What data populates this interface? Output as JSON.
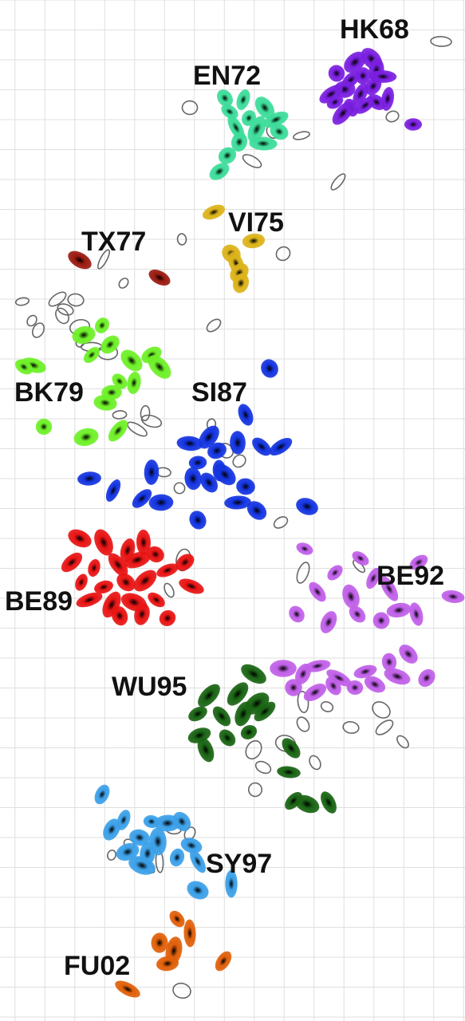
{
  "chart_data": {
    "type": "scatter",
    "grid": true,
    "title": "",
    "xlabel": "",
    "ylabel": "",
    "series": [
      {
        "name": "HK68",
        "color": "#7a1fe0",
        "points": [
          [
            445,
            78
          ],
          [
            466,
            74
          ],
          [
            422,
            92
          ],
          [
            440,
            100
          ],
          [
            455,
            95
          ],
          [
            472,
            88
          ],
          [
            432,
            112
          ],
          [
            452,
            118
          ],
          [
            468,
            108
          ],
          [
            480,
            96
          ],
          [
            420,
            128
          ],
          [
            440,
            135
          ],
          [
            458,
            132
          ],
          [
            472,
            128
          ],
          [
            486,
            124
          ],
          [
            430,
            142
          ],
          [
            415,
            118
          ],
          [
            518,
            156
          ]
        ]
      },
      {
        "name": "EN72",
        "color": "#3ddc9a",
        "points": [
          [
            282,
            123
          ],
          [
            305,
            125
          ],
          [
            288,
            140
          ],
          [
            312,
            148
          ],
          [
            332,
            135
          ],
          [
            346,
            150
          ],
          [
            296,
            160
          ],
          [
            322,
            162
          ],
          [
            300,
            178
          ],
          [
            330,
            180
          ],
          [
            285,
            195
          ],
          [
            275,
            215
          ],
          [
            350,
            165
          ]
        ]
      },
      {
        "name": "VI75",
        "color": "#dcb31a",
        "points": [
          [
            268,
            266
          ],
          [
            318,
            302
          ],
          [
            290,
            318
          ],
          [
            296,
            330
          ],
          [
            300,
            342
          ],
          [
            302,
            355
          ]
        ]
      },
      {
        "name": "TX77",
        "color": "#9a1a10",
        "points": [
          [
            100,
            326
          ],
          [
            200,
            348
          ]
        ]
      },
      {
        "name": "BK79",
        "color": "#6ef028",
        "points": [
          [
            128,
            408
          ],
          [
            105,
            420
          ],
          [
            138,
            432
          ],
          [
            115,
            445
          ],
          [
            165,
            452
          ],
          [
            190,
            445
          ],
          [
            200,
            460
          ],
          [
            42,
            458
          ],
          [
            30,
            460
          ],
          [
            150,
            478
          ],
          [
            168,
            480
          ],
          [
            140,
            492
          ],
          [
            132,
            505
          ],
          [
            148,
            540
          ],
          [
            108,
            548
          ],
          [
            55,
            535
          ]
        ]
      },
      {
        "name": "SI87",
        "color": "#1434e0",
        "points": [
          [
            338,
            462
          ],
          [
            308,
            520
          ],
          [
            238,
            556
          ],
          [
            262,
            548
          ],
          [
            272,
            565
          ],
          [
            248,
            580
          ],
          [
            275,
            590
          ],
          [
            298,
            555
          ],
          [
            328,
            560
          ],
          [
            352,
            560
          ],
          [
            190,
            592
          ],
          [
            242,
            600
          ],
          [
            262,
            605
          ],
          [
            282,
            595
          ],
          [
            308,
            610
          ],
          [
            298,
            630
          ],
          [
            322,
            640
          ],
          [
            112,
            600
          ],
          [
            142,
            615
          ],
          [
            178,
            625
          ],
          [
            202,
            630
          ],
          [
            248,
            652
          ],
          [
            385,
            635
          ]
        ]
      },
      {
        "name": "BE89",
        "color": "#e81414",
        "points": [
          [
            100,
            675
          ],
          [
            130,
            680
          ],
          [
            160,
            690
          ],
          [
            180,
            680
          ],
          [
            90,
            705
          ],
          [
            118,
            712
          ],
          [
            148,
            708
          ],
          [
            172,
            702
          ],
          [
            195,
            695
          ],
          [
            102,
            730
          ],
          [
            130,
            736
          ],
          [
            158,
            730
          ],
          [
            182,
            728
          ],
          [
            210,
            715
          ],
          [
            232,
            705
          ],
          [
            112,
            752
          ],
          [
            140,
            758
          ],
          [
            168,
            755
          ],
          [
            196,
            752
          ],
          [
            240,
            735
          ],
          [
            150,
            772
          ],
          [
            178,
            770
          ],
          [
            210,
            775
          ]
        ]
      },
      {
        "name": "BE92",
        "color": "#c060e8",
        "points": [
          [
            382,
            688
          ],
          [
            452,
            700
          ],
          [
            420,
            718
          ],
          [
            468,
            725
          ],
          [
            488,
            738
          ],
          [
            525,
            705
          ],
          [
            568,
            748
          ],
          [
            398,
            742
          ],
          [
            440,
            748
          ],
          [
            372,
            770
          ],
          [
            412,
            780
          ],
          [
            448,
            770
          ],
          [
            478,
            778
          ],
          [
            500,
            765
          ],
          [
            522,
            770
          ],
          [
            355,
            838
          ],
          [
            380,
            845
          ],
          [
            398,
            835
          ],
          [
            425,
            850
          ],
          [
            458,
            842
          ],
          [
            488,
            830
          ],
          [
            512,
            820
          ],
          [
            535,
            850
          ],
          [
            368,
            862
          ],
          [
            395,
            868
          ],
          [
            418,
            860
          ],
          [
            445,
            862
          ],
          [
            470,
            858
          ],
          [
            498,
            848
          ]
        ]
      },
      {
        "name": "WU95",
        "color": "#1a6414",
        "points": [
          [
            318,
            845
          ],
          [
            262,
            872
          ],
          [
            298,
            870
          ],
          [
            322,
            882
          ],
          [
            248,
            895
          ],
          [
            278,
            898
          ],
          [
            305,
            895
          ],
          [
            332,
            892
          ],
          [
            250,
            922
          ],
          [
            285,
            925
          ],
          [
            312,
            918
          ],
          [
            258,
            940
          ],
          [
            365,
            938
          ],
          [
            362,
            968
          ],
          [
            385,
            1008
          ],
          [
            412,
            1006
          ],
          [
            368,
            1004
          ]
        ]
      },
      {
        "name": "SY97",
        "color": "#3ca0e8",
        "points": [
          [
            128,
            996
          ],
          [
            155,
            1028
          ],
          [
            140,
            1040
          ],
          [
            190,
            1030
          ],
          [
            210,
            1032
          ],
          [
            228,
            1030
          ],
          [
            175,
            1050
          ],
          [
            198,
            1055
          ],
          [
            240,
            1060
          ],
          [
            160,
            1068
          ],
          [
            185,
            1070
          ],
          [
            222,
            1075
          ],
          [
            248,
            1080
          ],
          [
            178,
            1085
          ],
          [
            248,
            1116
          ],
          [
            290,
            1108
          ]
        ]
      },
      {
        "name": "FU02",
        "color": "#e0600a",
        "points": [
          [
            222,
            1152
          ],
          [
            238,
            1170
          ],
          [
            200,
            1182
          ],
          [
            218,
            1192
          ],
          [
            210,
            1208
          ],
          [
            280,
            1205
          ],
          [
            160,
            1240
          ]
        ]
      }
    ],
    "unassigned_outlines": [
      [
        553,
        52
      ],
      [
        238,
        135
      ],
      [
        378,
        170
      ],
      [
        316,
        202
      ],
      [
        424,
        228
      ],
      [
        342,
        165
      ],
      [
        492,
        146
      ],
      [
        228,
        300
      ],
      [
        355,
        318
      ],
      [
        155,
        355
      ],
      [
        130,
        325
      ],
      [
        28,
        378
      ],
      [
        72,
        375
      ],
      [
        82,
        388
      ],
      [
        95,
        376
      ],
      [
        78,
        396
      ],
      [
        40,
        402
      ],
      [
        48,
        414
      ],
      [
        100,
        410
      ],
      [
        100,
        430
      ],
      [
        115,
        435
      ],
      [
        135,
        442
      ],
      [
        268,
        408
      ],
      [
        182,
        518
      ],
      [
        190,
        528
      ],
      [
        172,
        538
      ],
      [
        150,
        520
      ],
      [
        205,
        592
      ],
      [
        225,
        612
      ],
      [
        265,
        532
      ],
      [
        283,
        565
      ],
      [
        300,
        578
      ],
      [
        352,
        655
      ],
      [
        230,
        702
      ],
      [
        212,
        740
      ],
      [
        380,
        718
      ],
      [
        450,
        710
      ],
      [
        380,
        880
      ],
      [
        380,
        908
      ],
      [
        410,
        886
      ],
      [
        478,
        890
      ],
      [
        440,
        912
      ],
      [
        482,
        912
      ],
      [
        505,
        930
      ],
      [
        358,
        932
      ],
      [
        318,
        940
      ],
      [
        395,
        956
      ],
      [
        330,
        962
      ],
      [
        320,
        990
      ],
      [
        218,
        1040
      ],
      [
        162,
        1058
      ],
      [
        140,
        1072
      ],
      [
        182,
        1085
      ],
      [
        200,
        1080
      ],
      [
        238,
        1045
      ],
      [
        218,
        1188
      ],
      [
        228,
        1242
      ]
    ]
  }
}
